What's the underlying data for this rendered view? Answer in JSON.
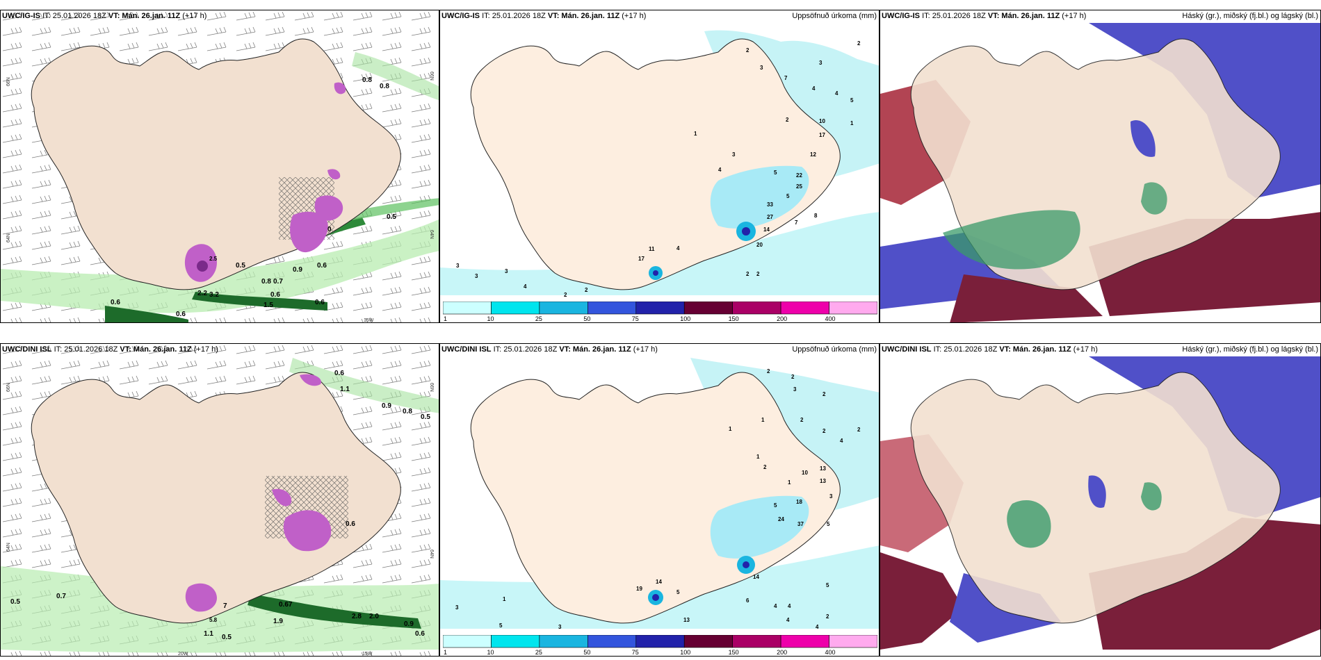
{
  "rows": [
    {
      "model": "UWC/IG-IS",
      "it_label": "IT: 25.01.2026 18Z",
      "vt_label": "VT: Mán. 26.jan. 11Z",
      "lead": "(+17 h)",
      "wind_labels": [
        "0.8",
        "0.8",
        "0.5",
        "0.9",
        "0.6",
        "0.5",
        "0.8",
        "0.7",
        "0.6",
        "0.6",
        "0.6",
        "0.6",
        "2.2",
        "3.2",
        "1.5",
        "2.5",
        "0"
      ],
      "wind_coords": [
        "66N",
        "66N",
        "64N",
        "64N",
        "15W"
      ],
      "precip_labels": [
        "2",
        "2",
        "3",
        "3",
        "7",
        "4",
        "4",
        "5",
        "1",
        "2",
        "10",
        "17",
        "12",
        "1",
        "3",
        "4",
        "5",
        "22",
        "25",
        "5",
        "33",
        "27",
        "14",
        "7",
        "8",
        "20",
        "2",
        "2",
        "11",
        "17",
        "4",
        "3",
        "3",
        "2",
        "2",
        "4",
        "3"
      ]
    },
    {
      "model": "UWC/DINI ISL",
      "it_label": "IT: 25.01.2026 18Z",
      "vt_label": "VT: Mán. 26.jan. 11Z",
      "lead": "(+17 h)",
      "wind_labels": [
        "0.6",
        "1.1",
        "0.9",
        "0.8",
        "0.5",
        "0.6",
        "0.7",
        "0.9",
        "0.6",
        "0.67",
        "2.8",
        "2.0",
        "1.9",
        "0.5",
        "1.1",
        "0.5",
        "5.8",
        "7"
      ],
      "wind_coords": [
        "66N",
        "66N",
        "64N",
        "64N",
        "20W",
        "15W"
      ],
      "precip_labels": [
        "2",
        "2",
        "3",
        "2",
        "1",
        "2",
        "1",
        "2",
        "4",
        "2",
        "1",
        "2",
        "10",
        "13",
        "13",
        "18",
        "5",
        "24",
        "37",
        "5",
        "3",
        "1",
        "14",
        "6",
        "4",
        "4",
        "5",
        "2",
        "4",
        "4",
        "13",
        "3",
        "5",
        "3",
        "1",
        "19",
        "14",
        "5"
      ]
    }
  ],
  "precip_title": "Uppsöfnuð úrkoma (mm)",
  "cloud_title": "Háský (gr.), miðský (fj.bl.) og lágský (bl.)",
  "scale": {
    "ticks": [
      "1",
      "10",
      "25",
      "50",
      "75",
      "100",
      "150",
      "200",
      "400"
    ],
    "colors": [
      "#ccffff",
      "#00e5ee",
      "#1ab5e0",
      "#3355dd",
      "#2222aa",
      "#660033",
      "#aa0066",
      "#ee00aa",
      "#ffaaee"
    ]
  }
}
